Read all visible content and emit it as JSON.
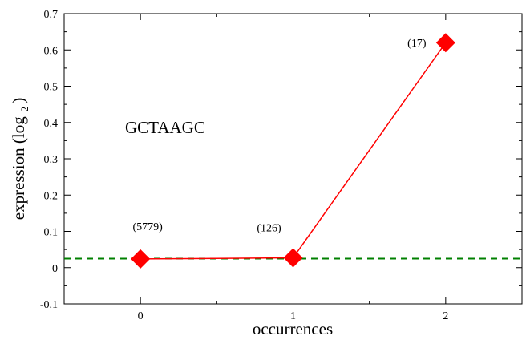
{
  "chart_data": {
    "type": "line",
    "xlabel": "occurrences",
    "ylabel": "expression (log",
    "ylabel_subscript": "2",
    "ylabel_close": ")",
    "x_ticks": [
      "0",
      "1",
      "2"
    ],
    "y_ticks": [
      "-0.1",
      "0",
      "0.1",
      "0.2",
      "0.3",
      "0.4",
      "0.5",
      "0.6",
      "0.7"
    ],
    "xlim": [
      -0.5,
      2.5
    ],
    "ylim": [
      -0.1,
      0.7
    ],
    "series": [
      {
        "x": [
          0,
          1,
          2
        ],
        "y": [
          0.024,
          0.027,
          0.62
        ],
        "point_labels": [
          "(5779)",
          "(126)",
          "(17)"
        ],
        "color": "#ff0000",
        "marker": "diamond"
      }
    ],
    "reference_line": {
      "y": 0.025,
      "color": "#008000",
      "style": "dashed"
    },
    "annotation": "GCTAAGC",
    "grid": false
  }
}
